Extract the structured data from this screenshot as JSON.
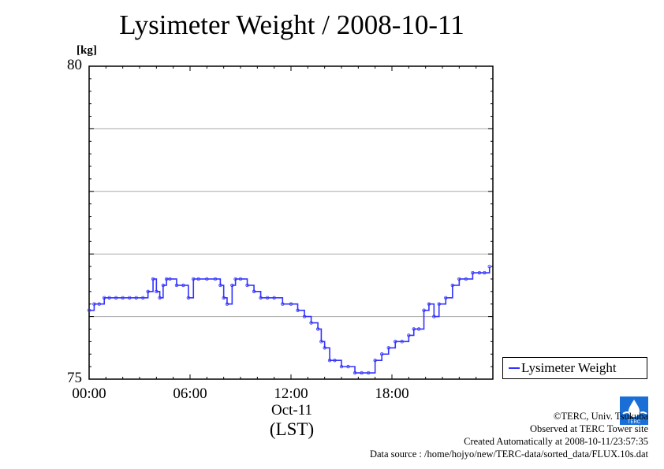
{
  "chart_data": {
    "type": "line",
    "title": "Lysimeter Weight / 2008-10-11",
    "ylabel_unit": "[kg]",
    "ylim": [
      75,
      80
    ],
    "y_ticks": [
      "80",
      "75"
    ],
    "y_gridlines": [
      76,
      77,
      78,
      79
    ],
    "xlim_hours": [
      0,
      24
    ],
    "x_ticks": [
      {
        "hour": 0,
        "label": "00:00"
      },
      {
        "hour": 6,
        "label": "06:00"
      },
      {
        "hour": 12,
        "label": "12:00"
      },
      {
        "hour": 18,
        "label": "18:00"
      }
    ],
    "x_date_label": "Oct-11",
    "x_axis_label": "(LST)",
    "grid": "horizontal",
    "legend_position": "bottom-right, outside plot",
    "series": [
      {
        "name": "Lysimeter Weight",
        "color": "#3333ff",
        "x_hours": [
          0,
          0.3,
          0.6,
          0.9,
          1.2,
          1.6,
          2.0,
          2.4,
          2.8,
          3.2,
          3.5,
          3.8,
          4.0,
          4.2,
          4.4,
          4.6,
          4.8,
          5.2,
          5.6,
          5.9,
          6.2,
          6.5,
          7.0,
          7.5,
          7.8,
          8.0,
          8.2,
          8.5,
          8.7,
          9.0,
          9.4,
          9.8,
          10.2,
          10.6,
          11.0,
          11.5,
          12.0,
          12.4,
          12.8,
          13.2,
          13.6,
          13.8,
          14.0,
          14.3,
          14.6,
          15.0,
          15.4,
          15.8,
          16.2,
          16.6,
          17.0,
          17.4,
          17.8,
          18.2,
          18.6,
          19.0,
          19.3,
          19.6,
          19.9,
          20.2,
          20.5,
          20.8,
          21.2,
          21.6,
          22.0,
          22.4,
          22.8,
          23.2,
          23.5,
          23.8
        ],
        "y_kg": [
          76.1,
          76.2,
          76.2,
          76.3,
          76.3,
          76.3,
          76.3,
          76.3,
          76.3,
          76.3,
          76.4,
          76.6,
          76.4,
          76.3,
          76.5,
          76.6,
          76.6,
          76.5,
          76.5,
          76.3,
          76.6,
          76.6,
          76.6,
          76.6,
          76.5,
          76.3,
          76.2,
          76.5,
          76.6,
          76.6,
          76.5,
          76.4,
          76.3,
          76.3,
          76.3,
          76.2,
          76.2,
          76.1,
          76.0,
          75.9,
          75.8,
          75.6,
          75.5,
          75.3,
          75.3,
          75.2,
          75.2,
          75.1,
          75.1,
          75.1,
          75.3,
          75.4,
          75.5,
          75.6,
          75.6,
          75.7,
          75.8,
          75.8,
          76.1,
          76.2,
          76.0,
          76.2,
          76.3,
          76.5,
          76.6,
          76.6,
          76.7,
          76.7,
          76.7,
          76.8
        ]
      }
    ]
  },
  "credits": {
    "copyright": "©TERC, Univ. Tsukuba",
    "observed": "Observed at TERC Tower site",
    "created": "Created Automatically at 2008-10-11/23:57:35",
    "source": "Data source : /home/hojyo/new/TERC-data/sorted_data/FLUX.10s.dat"
  },
  "logo": {
    "text": "TERC",
    "color": "#1a6fd6"
  }
}
